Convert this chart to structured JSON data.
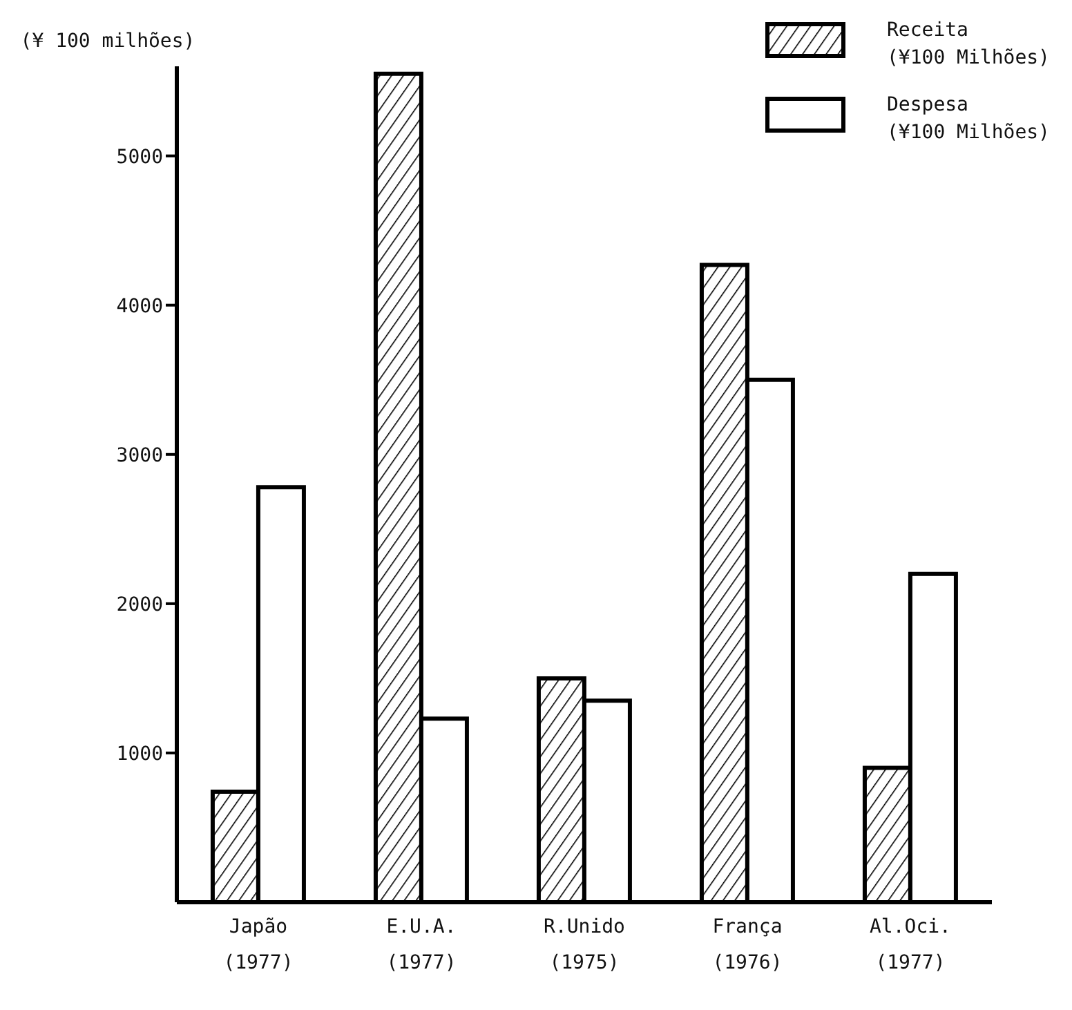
{
  "chart_data": {
    "type": "bar",
    "ylabel": "(¥ 100 milhões)",
    "categories": [
      "Japão\n(1977)",
      "E.U.A.\n(1977)",
      "R.Unido\n(1975)",
      "França\n(1976)",
      "Al.Oci.\n(1977)"
    ],
    "series": [
      {
        "name": "Receita\n(¥100 Milhões)",
        "color": "#000000",
        "values": [
          740,
          5550,
          1500,
          4270,
          900
        ]
      },
      {
        "name": "Despesa\n(¥100 Milhões)",
        "color": "#ffffff",
        "values": [
          2780,
          1230,
          1350,
          3500,
          2200
        ]
      }
    ],
    "ylim": [
      0,
      5600
    ],
    "yticks": [
      1000,
      2000,
      3000,
      4000,
      5000
    ],
    "grid": false,
    "legend": "top right"
  }
}
